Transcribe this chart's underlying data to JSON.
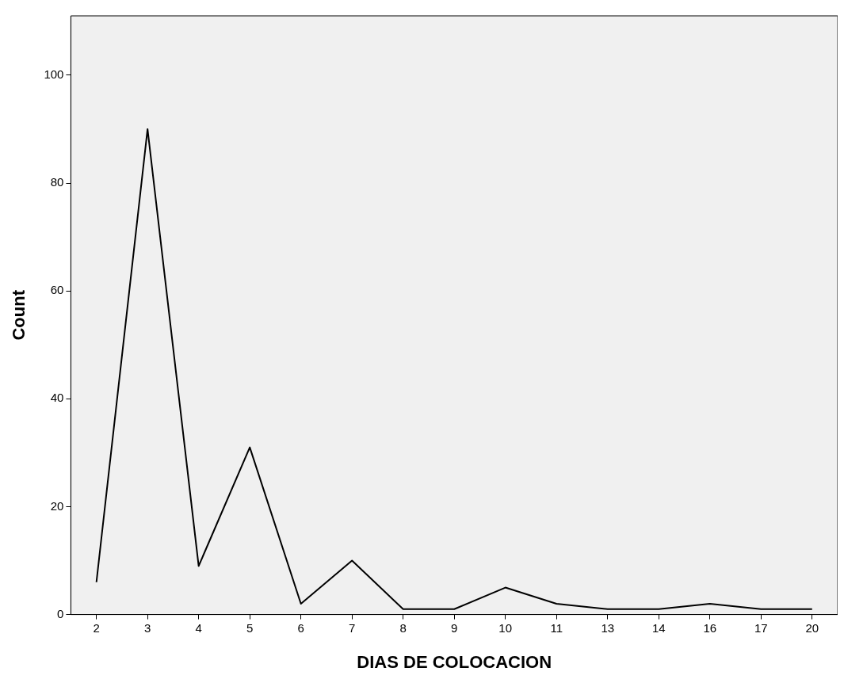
{
  "chart_data": {
    "type": "line",
    "xlabel": "DIAS DE COLOCACION",
    "ylabel": "Count",
    "categories": [
      "2",
      "3",
      "4",
      "5",
      "6",
      "7",
      "8",
      "9",
      "10",
      "11",
      "13",
      "14",
      "16",
      "17",
      "20"
    ],
    "values": [
      6,
      90,
      9,
      31,
      2,
      10,
      1,
      1,
      5,
      2,
      1,
      1,
      2,
      1,
      1
    ],
    "color": "#000000",
    "ylim": [
      0,
      111
    ],
    "yticks": [
      0,
      20,
      40,
      60,
      80,
      100
    ],
    "marker": "none",
    "line_style": "solid"
  }
}
